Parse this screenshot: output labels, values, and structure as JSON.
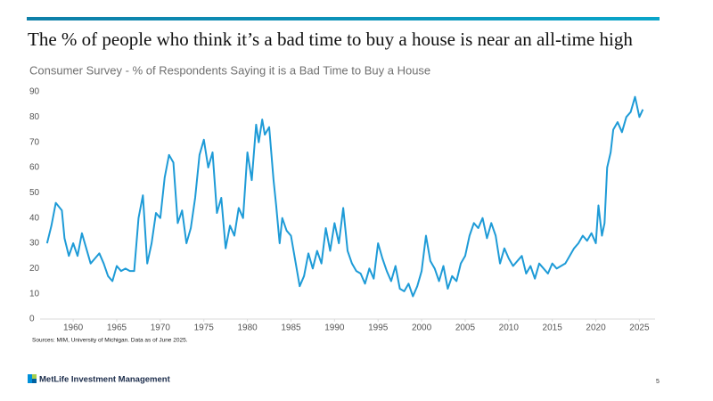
{
  "chart_data": {
    "type": "line",
    "title": "The % of people who think it’s a bad time to buy a house is near an all-time high",
    "subtitle": "Consumer Survey - % of Respondents Saying it is a Bad Time to Buy a House",
    "source": "Sources: MIM, University of Michigan. Data as of June 2025.",
    "x": [
      1957,
      1957.5,
      1958,
      1958.7,
      1959,
      1959.5,
      1960,
      1960.5,
      1961,
      1961.5,
      1962,
      1962.5,
      1963,
      1963.5,
      1964,
      1964.5,
      1965,
      1965.5,
      1966,
      1966.5,
      1967,
      1967.5,
      1968,
      1968.5,
      1969,
      1969.5,
      1970,
      1970.5,
      1971,
      1971.5,
      1972,
      1972.5,
      1973,
      1973.5,
      1974,
      1974.5,
      1975,
      1975.5,
      1976,
      1976.5,
      1977,
      1977.5,
      1978,
      1978.5,
      1979,
      1979.5,
      1980,
      1980.5,
      1981,
      1981.3,
      1981.7,
      1982,
      1982.5,
      1983,
      1983.3,
      1983.7,
      1984,
      1984.5,
      1985,
      1985.5,
      1986,
      1986.5,
      1987,
      1987.5,
      1988,
      1988.5,
      1989,
      1989.5,
      1990,
      1990.5,
      1991,
      1991.5,
      1992,
      1992.5,
      1993,
      1993.5,
      1994,
      1994.5,
      1995,
      1995.5,
      1996,
      1996.5,
      1997,
      1997.5,
      1998,
      1998.5,
      1999,
      1999.5,
      2000,
      2000.5,
      2001,
      2001.5,
      2002,
      2002.5,
      2003,
      2003.5,
      2004,
      2004.5,
      2005,
      2005.5,
      2006,
      2006.5,
      2007,
      2007.5,
      2008,
      2008.5,
      2009,
      2009.5,
      2010,
      2010.5,
      2011,
      2011.5,
      2012,
      2012.5,
      2013,
      2013.5,
      2014,
      2014.5,
      2015,
      2015.5,
      2016,
      2016.5,
      2017,
      2017.5,
      2018,
      2018.5,
      2019,
      2019.5,
      2020,
      2020.3,
      2020.7,
      2021,
      2021.3,
      2021.7,
      2022,
      2022.5,
      2023,
      2023.5,
      2024,
      2024.5,
      2025,
      2025.4
    ],
    "series": [
      {
        "name": "Bad time to buy a house",
        "color": "#1e9bd7",
        "values": [
          30,
          37,
          46,
          43,
          32,
          25,
          30,
          25,
          34,
          28,
          22,
          24,
          26,
          22,
          17,
          15,
          21,
          19,
          20,
          19,
          19,
          40,
          49,
          22,
          30,
          42,
          40,
          56,
          65,
          62,
          38,
          43,
          30,
          36,
          48,
          65,
          71,
          60,
          66,
          42,
          48,
          28,
          37,
          33,
          44,
          40,
          66,
          55,
          77,
          70,
          79,
          73,
          76,
          55,
          45,
          30,
          40,
          35,
          33,
          23,
          13,
          17,
          26,
          20,
          27,
          22,
          36,
          27,
          38,
          30,
          44,
          27,
          22,
          19,
          18,
          14,
          20,
          16,
          30,
          24,
          19,
          15,
          21,
          12,
          11,
          14,
          9,
          13,
          19,
          33,
          23,
          20,
          15,
          21,
          12,
          17,
          15,
          22,
          25,
          33,
          38,
          36,
          40,
          32,
          38,
          33,
          22,
          28,
          24,
          21,
          23,
          25,
          18,
          21,
          16,
          22,
          20,
          18,
          22,
          20,
          21,
          22,
          25,
          28,
          30,
          33,
          31,
          34,
          30,
          45,
          33,
          38,
          60,
          66,
          75,
          78,
          74,
          80,
          82,
          88,
          80,
          83
        ]
      }
    ],
    "xlim": [
      1956.2,
      2026.8
    ],
    "xticks": [
      1960,
      1965,
      1970,
      1975,
      1980,
      1985,
      1990,
      1995,
      2000,
      2005,
      2010,
      2015,
      2020,
      2025
    ],
    "ylim": [
      0,
      90
    ],
    "yticks": [
      0,
      10,
      20,
      30,
      40,
      50,
      60,
      70,
      80,
      90
    ],
    "grid": false
  },
  "footer": {
    "brand": "MetLife Investment Management",
    "page": "5"
  }
}
